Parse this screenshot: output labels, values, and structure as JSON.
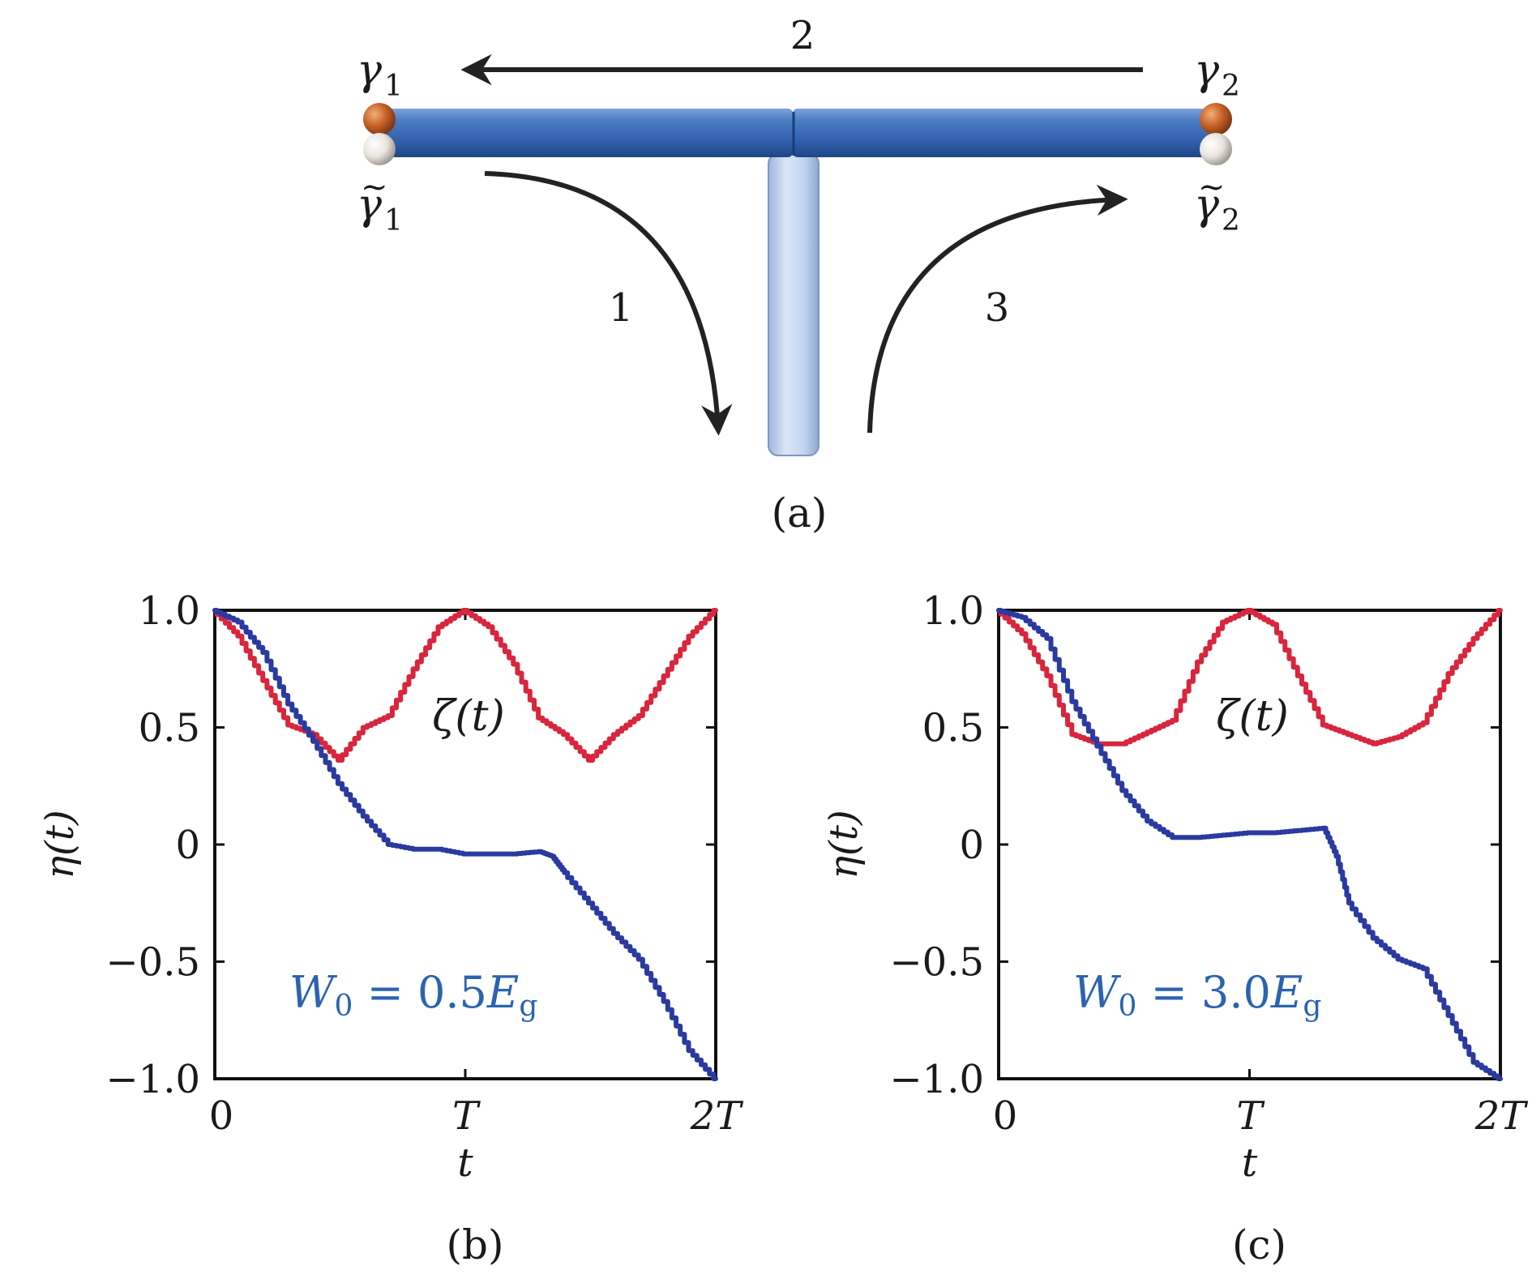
{
  "panel_a": {
    "caption": "(a)",
    "label_gamma1": "γ",
    "label_gamma1_sub": "1",
    "label_gamma2": "γ",
    "label_gamma2_sub": "2",
    "label_gamma1_tilde": "γ",
    "label_gamma1_tilde_sub": "1",
    "label_gamma2_tilde": "γ",
    "label_gamma2_tilde_sub": "2",
    "tilde": "~",
    "step_1": "1",
    "step_2": "2",
    "step_3": "3",
    "colors": {
      "wire_horizontal": "#3a6db8",
      "wire_vertical": "#bcd0ec",
      "majorana_top": "#c8642a",
      "majorana_bottom": "#e8e4dc",
      "arrow": "#222222"
    }
  },
  "chart_data": [
    {
      "type": "line",
      "panel": "(b)",
      "xlabel": "t",
      "ylabel": "η(t)",
      "xlim": [
        0,
        2
      ],
      "ylim": [
        -1.0,
        1.0
      ],
      "x_ticks": [
        0,
        1,
        2
      ],
      "x_tick_labels": [
        "0",
        "T",
        "2T"
      ],
      "y_ticks": [
        1.0,
        0.5,
        0,
        -0.5,
        -1.0
      ],
      "y_tick_labels": [
        "1.0",
        "0.5",
        "0",
        "−0.5",
        "−1.0"
      ],
      "annotation_curve": "ζ(t)",
      "annotation_param_W": "W",
      "annotation_param_sub": "0",
      "annotation_param_eq": " = 0.5",
      "annotation_param_E": "E",
      "annotation_param_Esub": "g",
      "series": [
        {
          "color": "#d7263d",
          "x": [
            0,
            0.1,
            0.2,
            0.3,
            0.4,
            0.5,
            0.6,
            0.7,
            0.8,
            0.9,
            1.0,
            1.1,
            1.2,
            1.3,
            1.4,
            1.5,
            1.6,
            1.7,
            1.8,
            1.9,
            2.0
          ],
          "y": [
            1.0,
            0.89,
            0.7,
            0.51,
            0.47,
            0.36,
            0.5,
            0.55,
            0.75,
            0.93,
            1.0,
            0.93,
            0.77,
            0.54,
            0.47,
            0.36,
            0.47,
            0.55,
            0.72,
            0.89,
            1.0
          ]
        },
        {
          "color": "#2a3aa0",
          "x": [
            0,
            0.1,
            0.2,
            0.3,
            0.4,
            0.5,
            0.6,
            0.7,
            0.8,
            0.9,
            1.0,
            1.1,
            1.2,
            1.3,
            1.35,
            1.4,
            1.5,
            1.6,
            1.7,
            1.8,
            1.9,
            2.0
          ],
          "y": [
            1.0,
            0.95,
            0.82,
            0.6,
            0.44,
            0.26,
            0.12,
            0.0,
            -0.02,
            -0.02,
            -0.04,
            -0.04,
            -0.04,
            -0.03,
            -0.05,
            -0.12,
            -0.25,
            -0.38,
            -0.49,
            -0.67,
            -0.88,
            -1.0
          ]
        }
      ]
    },
    {
      "type": "line",
      "panel": "(c)",
      "xlabel": "t",
      "ylabel": "η(t)",
      "xlim": [
        0,
        2
      ],
      "ylim": [
        -1.0,
        1.0
      ],
      "x_ticks": [
        0,
        1,
        2
      ],
      "x_tick_labels": [
        "0",
        "T",
        "2T"
      ],
      "y_ticks": [
        1.0,
        0.5,
        0,
        -0.5,
        -1.0
      ],
      "y_tick_labels": [
        "1.0",
        "0.5",
        "0",
        "−0.5",
        "−1.0"
      ],
      "annotation_curve": "ζ(t)",
      "annotation_param_W": "W",
      "annotation_param_sub": "0",
      "annotation_param_eq": " = 3.0",
      "annotation_param_E": "E",
      "annotation_param_Esub": "g",
      "series": [
        {
          "color": "#d7263d",
          "x": [
            0,
            0.1,
            0.2,
            0.3,
            0.4,
            0.5,
            0.6,
            0.7,
            0.8,
            0.9,
            1.0,
            1.1,
            1.2,
            1.3,
            1.4,
            1.5,
            1.6,
            1.7,
            1.8,
            1.9,
            2.0
          ],
          "y": [
            1.0,
            0.9,
            0.72,
            0.47,
            0.43,
            0.43,
            0.48,
            0.53,
            0.78,
            0.95,
            1.0,
            0.94,
            0.72,
            0.51,
            0.47,
            0.43,
            0.46,
            0.52,
            0.73,
            0.88,
            1.0
          ]
        },
        {
          "color": "#2a3aa0",
          "x": [
            0,
            0.1,
            0.2,
            0.3,
            0.4,
            0.5,
            0.6,
            0.7,
            0.8,
            0.9,
            1.0,
            1.1,
            1.2,
            1.3,
            1.35,
            1.4,
            1.5,
            1.6,
            1.7,
            1.8,
            1.9,
            2.0
          ],
          "y": [
            1.0,
            0.97,
            0.88,
            0.61,
            0.42,
            0.23,
            0.1,
            0.03,
            0.03,
            0.04,
            0.05,
            0.05,
            0.06,
            0.07,
            -0.05,
            -0.25,
            -0.4,
            -0.49,
            -0.53,
            -0.73,
            -0.93,
            -1.0
          ]
        }
      ]
    }
  ]
}
